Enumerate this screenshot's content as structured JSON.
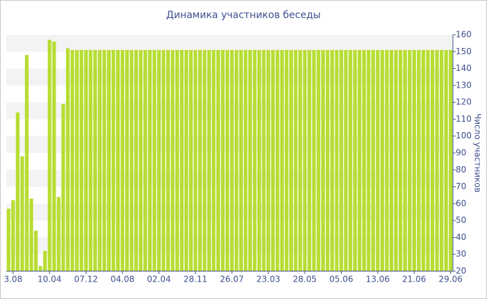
{
  "chart_data": {
    "type": "bar",
    "title": "Динамика участников беседы",
    "y_label": "Число участников",
    "categories": [
      null,
      "3.08",
      null,
      null,
      null,
      null,
      null,
      null,
      null,
      "10.04",
      null,
      null,
      null,
      null,
      null,
      null,
      null,
      "07.12",
      null,
      null,
      null,
      null,
      null,
      null,
      null,
      "04.08",
      null,
      null,
      null,
      null,
      null,
      null,
      null,
      "02.04",
      null,
      null,
      null,
      null,
      null,
      null,
      null,
      "28.11",
      null,
      null,
      null,
      null,
      null,
      null,
      null,
      "26.07",
      null,
      null,
      null,
      null,
      null,
      null,
      null,
      "23.03",
      null,
      null,
      null,
      null,
      null,
      null,
      null,
      "28.05",
      null,
      null,
      null,
      null,
      null,
      null,
      null,
      "05.06",
      null,
      null,
      null,
      null,
      null,
      null,
      null,
      "13.06",
      null,
      null,
      null,
      null,
      null,
      null,
      null,
      "21.06",
      null,
      null,
      null,
      null,
      null,
      null,
      null,
      "29.06"
    ],
    "values": [
      57,
      62,
      114,
      88,
      148,
      63,
      44,
      23,
      32,
      157,
      156,
      64,
      119,
      152,
      151,
      151,
      151,
      151,
      151,
      151,
      151,
      151,
      151,
      151,
      151,
      151,
      151,
      151,
      151,
      151,
      151,
      151,
      151,
      151,
      151,
      151,
      151,
      151,
      151,
      151,
      151,
      151,
      151,
      151,
      151,
      151,
      151,
      151,
      151,
      151,
      151,
      151,
      151,
      151,
      151,
      151,
      151,
      151,
      151,
      151,
      151,
      151,
      151,
      151,
      151,
      151,
      151,
      151,
      151,
      151,
      151,
      151,
      151,
      151,
      151,
      151,
      151,
      151,
      151,
      151,
      151,
      151,
      151,
      151,
      151,
      151,
      151,
      151,
      151,
      151,
      151,
      151,
      151,
      151,
      151,
      151,
      151,
      151
    ],
    "color": "#b7dd33",
    "ylim": [
      20,
      160
    ],
    "yticks": [
      20,
      30,
      40,
      50,
      60,
      70,
      80,
      90,
      100,
      110,
      120,
      130,
      140,
      150,
      160
    ],
    "y_axis_side": "right",
    "grid": true
  }
}
